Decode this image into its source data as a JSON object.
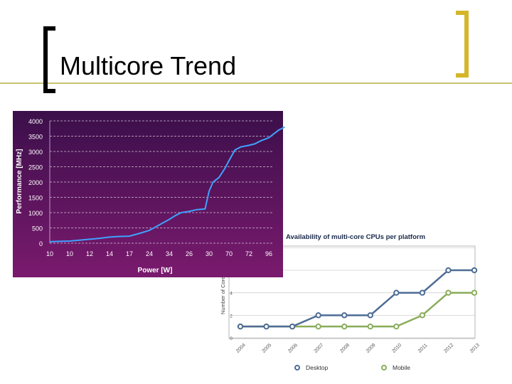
{
  "slide": {
    "title": "Multicore Trend"
  },
  "colors": {
    "accent": "#d4b62a",
    "line_green": "#c9c46e",
    "chart1_bg_top": "#3b0f4a",
    "chart1_bg_bottom": "#7a1a6e",
    "chart1_line": "#3fa2ff",
    "desktop": "#4e6c95",
    "mobile": "#8aac5a"
  },
  "chart_data": [
    {
      "type": "line",
      "title": "",
      "xlabel": "Power [W]",
      "ylabel": "Performance [MHz]",
      "categories": [
        "10",
        "10",
        "12",
        "14",
        "17",
        "24",
        "34",
        "26",
        "30",
        "70",
        "72",
        "96"
      ],
      "ylim": [
        0,
        4000
      ],
      "yticks": [
        "0",
        "500",
        "1000",
        "1500",
        "2000",
        "2500",
        "3000",
        "3500",
        "4000"
      ],
      "grid": true,
      "series": [
        {
          "x": [
            0,
            0.5,
            1,
            1.5,
            2,
            2.5,
            3,
            3.5,
            4,
            4.5,
            5,
            5.5,
            6,
            6.3,
            6.6,
            7,
            7.4,
            7.8,
            8,
            8.2,
            8.5,
            8.8,
            9,
            9.3,
            9.6,
            10,
            10.3,
            10.6,
            11,
            11.2,
            11.5,
            11.8
          ],
          "values": [
            50,
            60,
            70,
            100,
            130,
            160,
            200,
            220,
            230,
            320,
            420,
            600,
            780,
            900,
            1000,
            1040,
            1100,
            1120,
            1700,
            2000,
            2150,
            2450,
            2700,
            3050,
            3150,
            3200,
            3250,
            3350,
            3450,
            3550,
            3700,
            3800
          ]
        }
      ]
    },
    {
      "type": "line",
      "title": "Availability of multi-core CPUs per platform",
      "xlabel": "",
      "ylabel": "Number of Cores",
      "categories": [
        "2004",
        "2005",
        "2006",
        "2007",
        "2008",
        "2009",
        "2010",
        "2011",
        "2012",
        "2013"
      ],
      "ylim": [
        0,
        8
      ],
      "yticks": [
        "0",
        "2",
        "4",
        "6",
        "8"
      ],
      "grid": true,
      "legend": "bottom",
      "series": [
        {
          "name": "Desktop",
          "values": [
            1,
            1,
            1,
            2,
            2,
            2,
            4,
            4,
            6,
            6
          ]
        },
        {
          "name": "Mobile",
          "values": [
            1,
            1,
            1,
            1,
            1,
            1,
            1,
            2,
            4,
            4
          ]
        }
      ]
    }
  ]
}
